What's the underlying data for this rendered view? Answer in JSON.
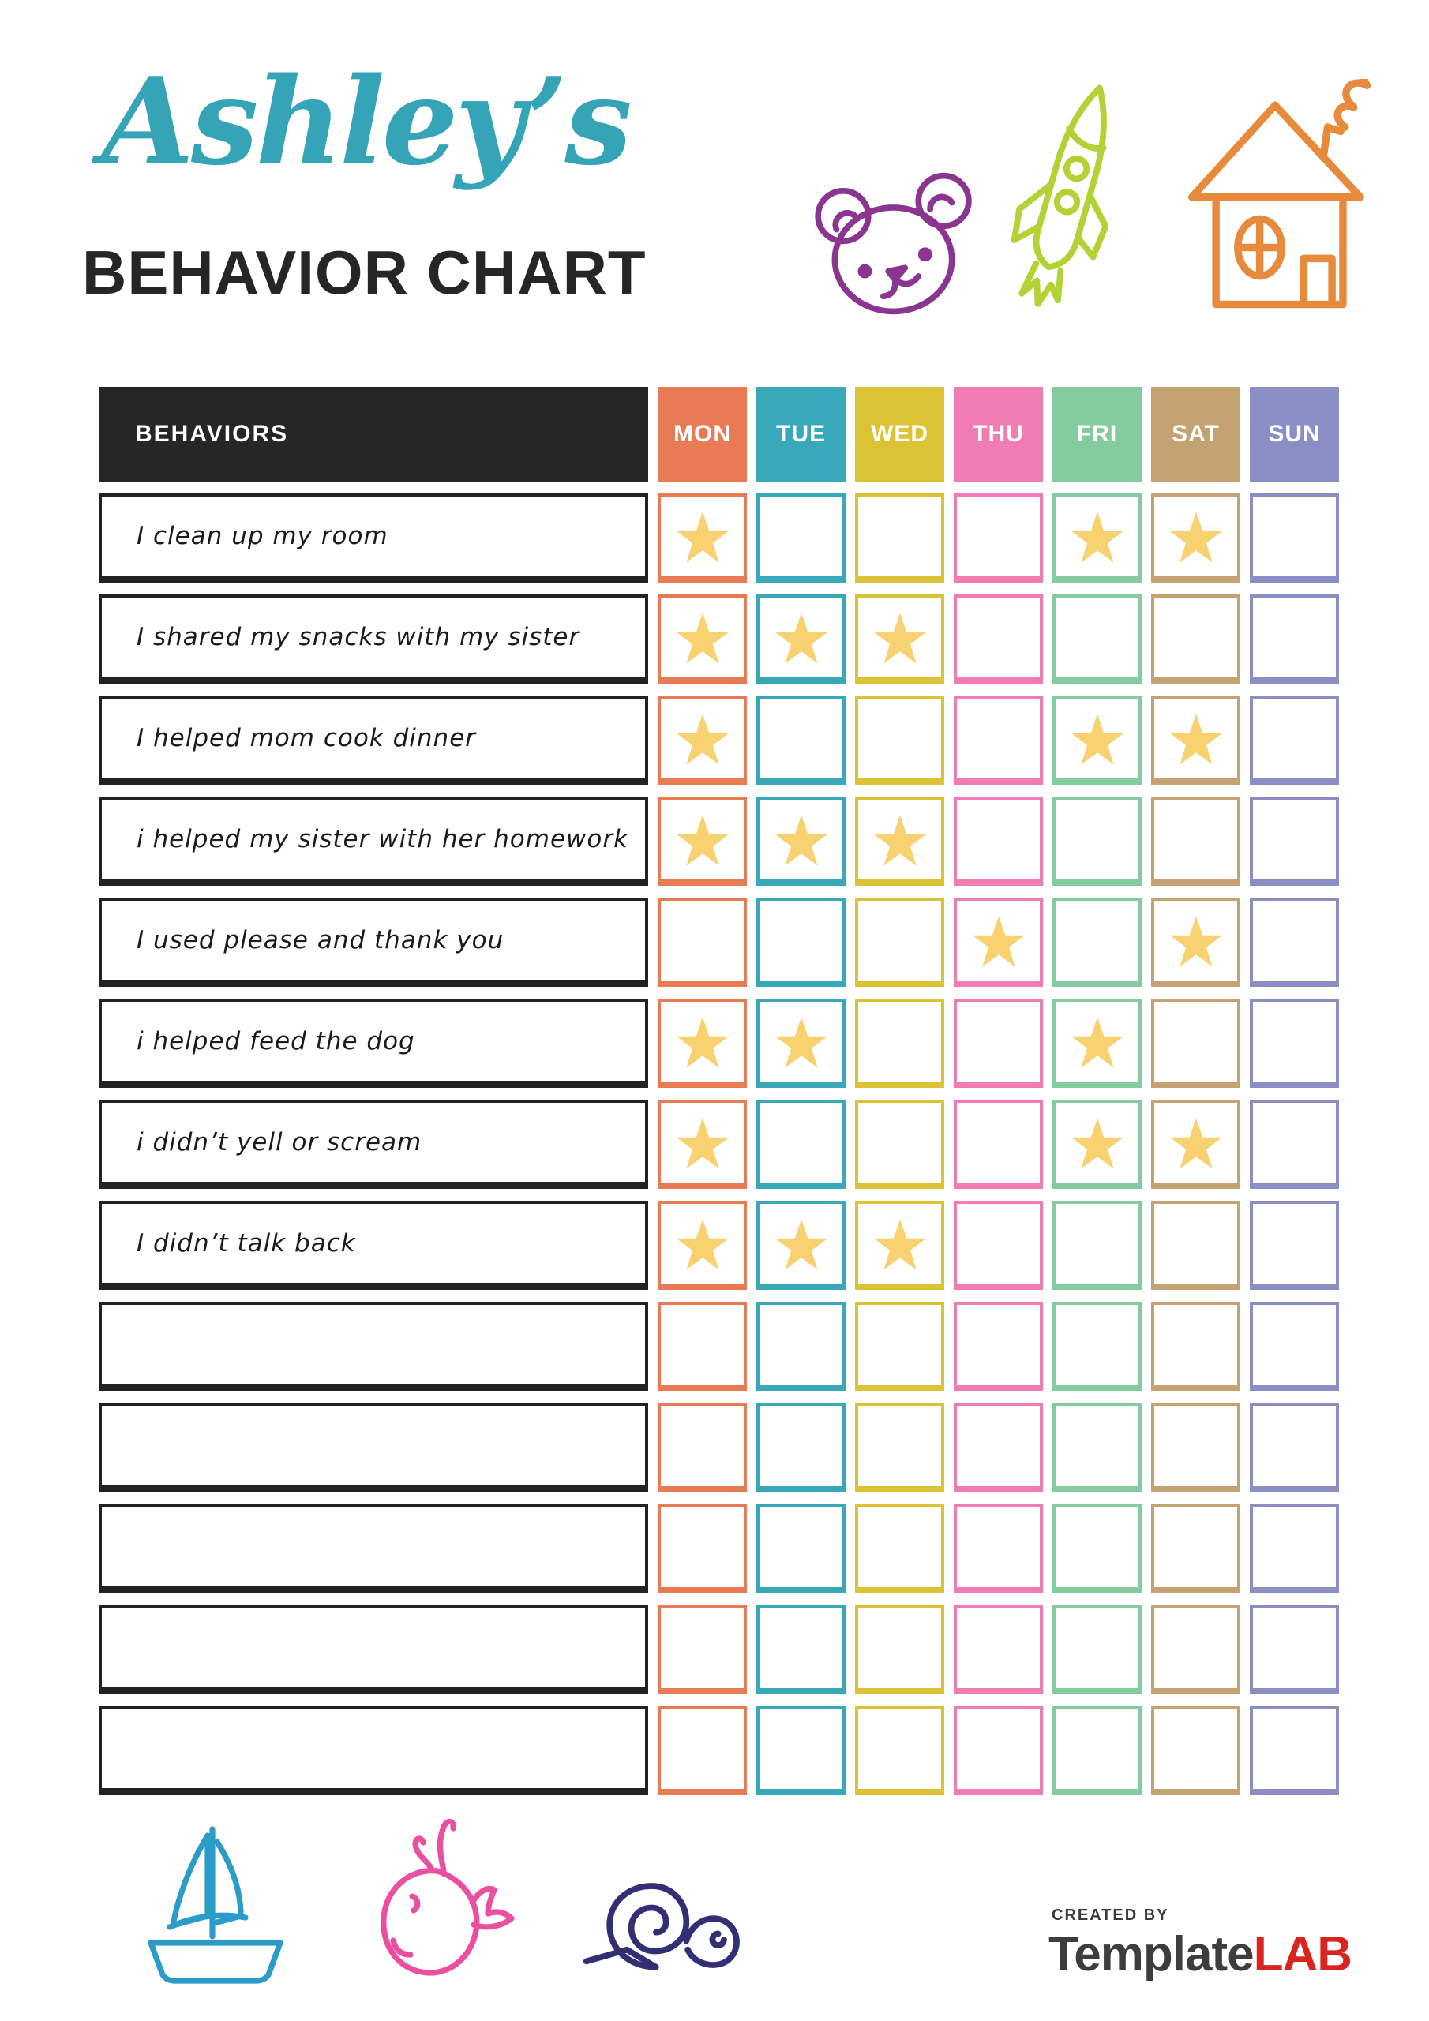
{
  "header": {
    "name": "Ashley’s",
    "title": "BEHAVIOR CHART"
  },
  "colors": {
    "accent_teal": "#35a4b6",
    "heading_dark": "#262626",
    "star": "#f8d170",
    "bear": "#8a3690",
    "rocket": "#b3d235",
    "house": "#e88a3c",
    "sailboat": "#2b9cc9",
    "whale": "#eb4fa0",
    "snail": "#322f75",
    "logo_gray": "#3d3d3d",
    "logo_red": "#d92420"
  },
  "icons": {
    "top": [
      "bear-icon",
      "rocket-icon",
      "house-icon"
    ],
    "bottom": [
      "sailboat-icon",
      "whale-icon",
      "snail-icon"
    ]
  },
  "table": {
    "behaviors_header": "BEHAVIORS",
    "days": [
      {
        "label": "MON",
        "color": "#e87a54"
      },
      {
        "label": "TUE",
        "color": "#39a8b8"
      },
      {
        "label": "WED",
        "color": "#dcc336"
      },
      {
        "label": "THU",
        "color": "#f07cb3"
      },
      {
        "label": "FRI",
        "color": "#85cba0"
      },
      {
        "label": "SAT",
        "color": "#c5a271"
      },
      {
        "label": "SUN",
        "color": "#8a8ec5"
      }
    ],
    "rows": [
      {
        "label": "I clean up my room",
        "stars": [
          1,
          0,
          0,
          0,
          1,
          1,
          0
        ]
      },
      {
        "label": "I shared my snacks with my sister",
        "stars": [
          1,
          1,
          1,
          0,
          0,
          0,
          0
        ]
      },
      {
        "label": "I helped mom cook dinner",
        "stars": [
          1,
          0,
          0,
          0,
          1,
          1,
          0
        ]
      },
      {
        "label": "i helped my sister with her homework",
        "stars": [
          1,
          1,
          1,
          0,
          0,
          0,
          0
        ]
      },
      {
        "label": "I used please and thank you",
        "stars": [
          0,
          0,
          0,
          1,
          0,
          1,
          0
        ]
      },
      {
        "label": "i helped feed the dog",
        "stars": [
          1,
          1,
          0,
          0,
          1,
          0,
          0
        ]
      },
      {
        "label": "i didn’t yell or scream",
        "stars": [
          1,
          0,
          0,
          0,
          1,
          1,
          0
        ]
      },
      {
        "label": "I didn’t talk back",
        "stars": [
          1,
          1,
          1,
          0,
          0,
          0,
          0
        ]
      },
      {
        "label": "",
        "stars": [
          0,
          0,
          0,
          0,
          0,
          0,
          0
        ]
      },
      {
        "label": "",
        "stars": [
          0,
          0,
          0,
          0,
          0,
          0,
          0
        ]
      },
      {
        "label": "",
        "stars": [
          0,
          0,
          0,
          0,
          0,
          0,
          0
        ]
      },
      {
        "label": "",
        "stars": [
          0,
          0,
          0,
          0,
          0,
          0,
          0
        ]
      },
      {
        "label": "",
        "stars": [
          0,
          0,
          0,
          0,
          0,
          0,
          0
        ]
      }
    ]
  },
  "footer": {
    "created_by": "CREATED BY",
    "brand_template": "Template",
    "brand_lab": "LAB"
  }
}
